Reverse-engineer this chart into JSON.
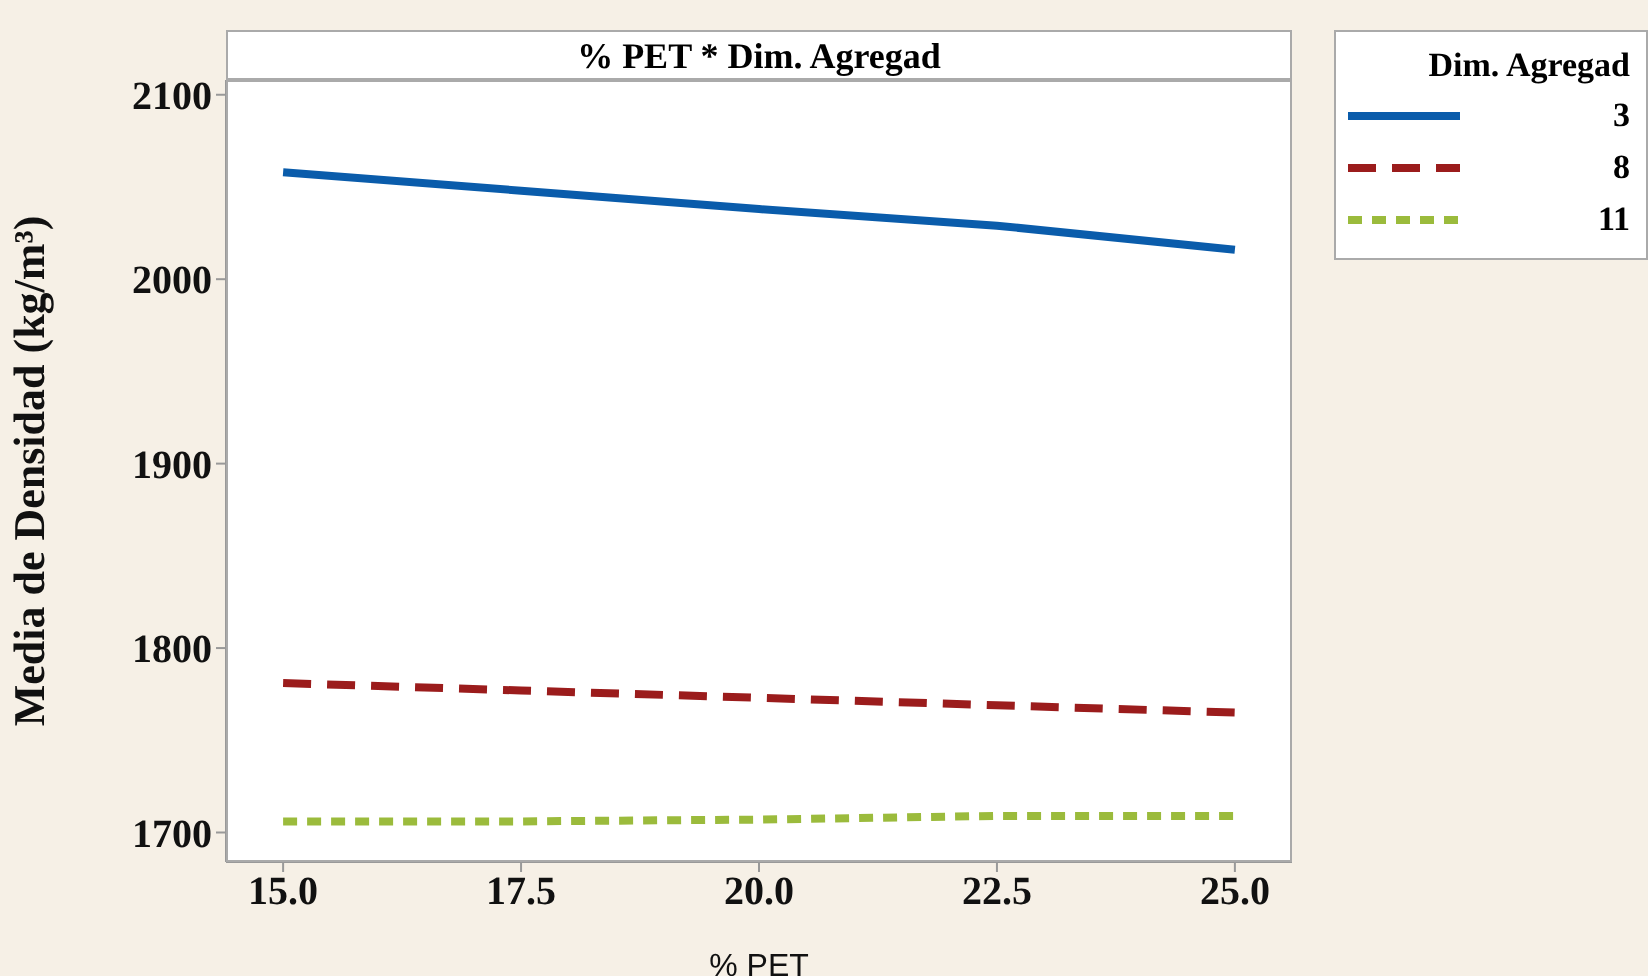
{
  "chart_data": {
    "type": "line",
    "title": "% PET * Dim. Agregad",
    "xlabel": "% PET",
    "ylabel": "Media de Densidad (kg/m³)",
    "legend_title": "Dim. Agregad",
    "legend": "top right",
    "x": [
      15,
      17.5,
      20,
      22.5,
      25
    ],
    "series": [
      {
        "name": "3",
        "color": "#0a5cab",
        "line_style": "solid",
        "values": [
          2058,
          2048,
          2038,
          2029,
          2016
        ]
      },
      {
        "name": "8",
        "color": "#9b1c1c",
        "line_style": "dashed",
        "values": [
          1781,
          1777,
          1773,
          1769,
          1765
        ]
      },
      {
        "name": "11",
        "color": "#9bbb3c",
        "line_style": "dotted",
        "values": [
          1706,
          1706,
          1707,
          1709,
          1709
        ]
      }
    ],
    "xlim": [
      14.4,
      25.6
    ],
    "xticks": [
      {
        "value": 15,
        "label": "15.0"
      },
      17.5,
      {
        "value": 20,
        "label": "20.0"
      },
      22.5,
      {
        "value": 25,
        "label": "25.0"
      }
    ],
    "ylim": [
      1684,
      2108
    ],
    "yticks": [
      1700,
      1800,
      1900,
      2000,
      2100
    ]
  }
}
